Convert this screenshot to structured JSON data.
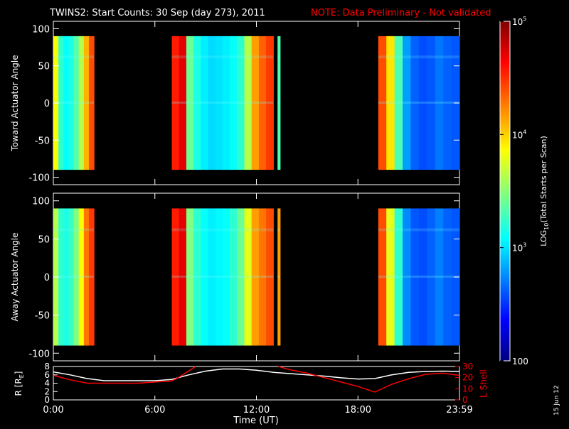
{
  "header": {
    "title": "TWINS2: Start Counts: 30 Sep (day 273), 2011",
    "note": "NOTE: Data Preliminary - Not validated"
  },
  "colorbar": {
    "label_main": "LOG",
    "label_sub": "10",
    "label_tail": "(Total Starts per Scan)",
    "ticks": [
      {
        "value": 100,
        "label": "100"
      },
      {
        "value": 1000,
        "label": "10",
        "sup": "3"
      },
      {
        "value": 10000,
        "label": "10",
        "sup": "4"
      },
      {
        "value": 100000,
        "label": "10",
        "sup": "5"
      }
    ],
    "range": [
      100,
      100000
    ],
    "scale": "log"
  },
  "footer": {
    "xlabel": "Time (UT)",
    "date_stamp": "15 Jun 12"
  },
  "chart_data": [
    {
      "type": "heatmap",
      "ylabel": "Toward Actuator Angle",
      "xlim": [
        0,
        24
      ],
      "ylim": [
        -110,
        110
      ],
      "yticks": [
        -100,
        -50,
        0,
        50,
        100
      ],
      "xticks": [
        0,
        6,
        12,
        18,
        24
      ],
      "xtick_labels": [
        "0:00",
        "6:00",
        "12:00",
        "18:00",
        "23:59"
      ],
      "data_blocks": [
        {
          "start": 0.0,
          "end": 2.4,
          "values": [
            0.62,
            0.42,
            0.38,
            0.4,
            0.46,
            0.55,
            0.7,
            0.8
          ]
        },
        {
          "start": 7.0,
          "end": 13.0,
          "values": [
            0.85,
            0.9,
            0.48,
            0.4,
            0.36,
            0.34,
            0.35,
            0.36,
            0.38,
            0.42,
            0.55,
            0.72,
            0.78,
            0.82
          ]
        },
        {
          "start": 13.25,
          "end": 13.4,
          "values": [
            0.45
          ]
        },
        {
          "start": 19.2,
          "end": 24.0,
          "values": [
            0.8,
            0.65,
            0.45,
            0.28,
            0.22,
            0.2,
            0.21,
            0.24,
            0.22,
            0.21
          ]
        }
      ]
    },
    {
      "type": "heatmap",
      "ylabel": "Away Actuator Angle",
      "xlim": [
        0,
        24
      ],
      "ylim": [
        -110,
        110
      ],
      "yticks": [
        -100,
        -50,
        0,
        50,
        100
      ],
      "xticks": [
        0,
        6,
        12,
        18,
        24
      ],
      "xtick_labels": [
        "0:00",
        "6:00",
        "12:00",
        "18:00",
        "23:59"
      ],
      "data_blocks": [
        {
          "start": 0.0,
          "end": 2.4,
          "values": [
            0.55,
            0.42,
            0.4,
            0.43,
            0.5,
            0.62,
            0.76,
            0.82
          ]
        },
        {
          "start": 7.0,
          "end": 13.0,
          "values": [
            0.85,
            0.9,
            0.5,
            0.42,
            0.38,
            0.36,
            0.37,
            0.38,
            0.42,
            0.48,
            0.6,
            0.72,
            0.76,
            0.8
          ]
        },
        {
          "start": 13.25,
          "end": 13.4,
          "values": [
            0.72
          ]
        },
        {
          "start": 19.2,
          "end": 24.0,
          "values": [
            0.8,
            0.6,
            0.42,
            0.26,
            0.21,
            0.2,
            0.22,
            0.25,
            0.22,
            0.21
          ]
        }
      ]
    },
    {
      "type": "line",
      "xlim": [
        0,
        24
      ],
      "xticks": [
        0,
        6,
        12,
        18,
        24
      ],
      "xtick_labels": [
        "0:00",
        "6:00",
        "12:00",
        "18:00",
        "23:59"
      ],
      "ylabel_left": "R [R",
      "ylabel_left_sub": "E",
      "ylabel_left_tail": "]",
      "ylim_left": [
        0,
        8
      ],
      "yticks_left": [
        0,
        2,
        4,
        6,
        8
      ],
      "ylabel_right": "L Shell",
      "ylim_right": [
        0,
        30
      ],
      "yticks_right": [
        0,
        10,
        20,
        30
      ],
      "series": [
        {
          "axis": "left",
          "color": "#ffffff",
          "x": [
            0,
            1,
            2,
            3,
            4,
            5,
            6,
            7,
            8,
            9,
            10,
            11,
            12,
            13,
            14,
            15,
            16,
            17,
            18,
            19,
            20,
            21,
            22,
            23,
            24
          ],
          "y": [
            6.7,
            6.0,
            5.1,
            4.6,
            4.6,
            4.6,
            4.6,
            4.9,
            6.0,
            6.9,
            7.4,
            7.4,
            7.1,
            6.6,
            6.3,
            6.0,
            5.7,
            5.3,
            5.0,
            5.1,
            6.0,
            6.6,
            6.8,
            6.9,
            6.8
          ]
        },
        {
          "axis": "right",
          "color": "#ff0000",
          "x": [
            0,
            1,
            2,
            3,
            4,
            5,
            6,
            7,
            7.5,
            8,
            8.4,
            null,
            13.3,
            14,
            15,
            16,
            17,
            18,
            19,
            20,
            21,
            22,
            23,
            23.5,
            24
          ],
          "y": [
            22,
            18,
            15,
            15,
            15,
            15,
            16,
            17,
            21,
            26,
            30,
            null,
            30,
            27,
            24,
            20,
            16,
            12,
            7,
            14,
            19,
            23,
            24,
            23,
            22
          ]
        }
      ]
    }
  ]
}
